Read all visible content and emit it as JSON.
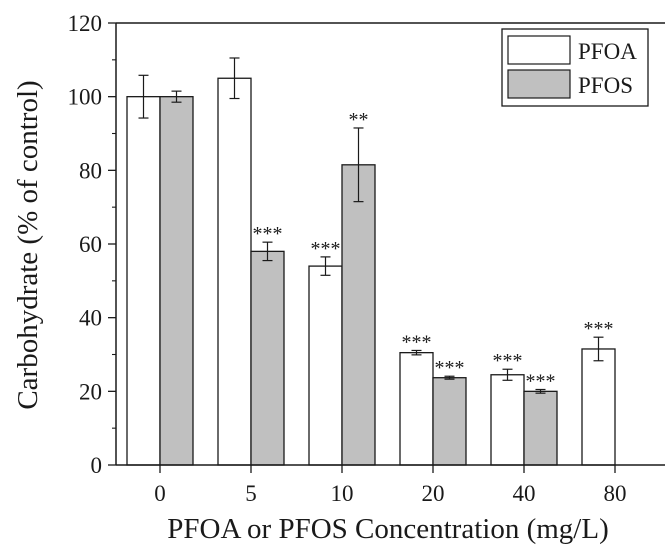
{
  "chart_data": {
    "type": "bar",
    "title": "",
    "xlabel": "PFOA or PFOS Concentration (mg/L)",
    "ylabel": "Carbohydrate (% of control)",
    "ylim": [
      0,
      120
    ],
    "yticks": [
      0,
      20,
      40,
      60,
      80,
      100,
      120
    ],
    "categories": [
      "0",
      "5",
      "10",
      "20",
      "40",
      "80"
    ],
    "series": [
      {
        "name": "PFOA",
        "color": "#ffffff",
        "values": [
          100,
          105,
          54,
          30.5,
          24.5,
          31.5
        ],
        "errors": [
          5.8,
          5.5,
          2.5,
          0.6,
          1.5,
          3.2
        ],
        "annotations": [
          "",
          "",
          "***",
          "***",
          "***",
          "***"
        ]
      },
      {
        "name": "PFOS",
        "color": "#c0c0c0",
        "values": [
          100,
          58,
          81.5,
          23.7,
          20,
          null
        ],
        "errors": [
          1.5,
          2.5,
          10.0,
          0.4,
          0.5,
          null
        ],
        "annotations": [
          "",
          "***",
          "**",
          "***",
          "***",
          ""
        ]
      }
    ],
    "legend_position": "top-right",
    "grid": false
  }
}
